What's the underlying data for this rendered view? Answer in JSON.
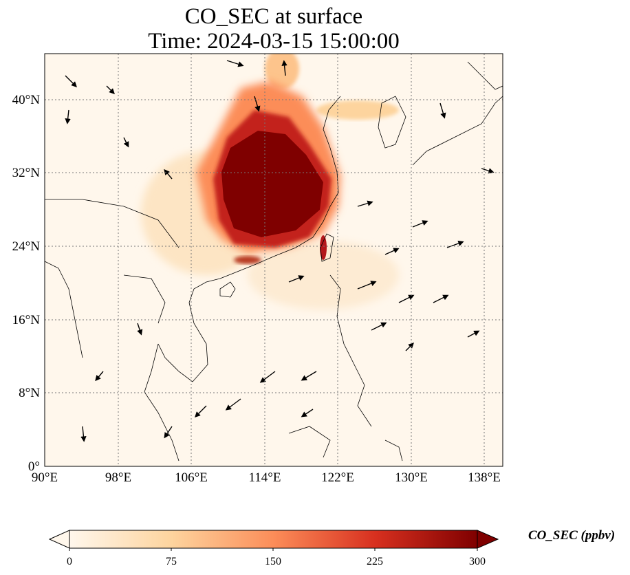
{
  "title": {
    "line1": "CO_SEC at surface",
    "line2": "Time: 2024-03-15 15:00:00"
  },
  "map": {
    "lon_range": [
      90,
      140
    ],
    "lat_range": [
      0,
      45
    ],
    "lon_ticks": [
      "90°E",
      "98°E",
      "106°E",
      "114°E",
      "122°E",
      "130°E",
      "138°E"
    ],
    "lat_ticks": [
      "0°",
      "8°N",
      "16°N",
      "24°N",
      "32°N",
      "40°N"
    ],
    "gridlines": "dotted",
    "features": [
      "coastlines",
      "country borders",
      "wind vectors"
    ],
    "high_concentration_region": "eastern China (approx. 106°E–122°E, 22°N–41°N)"
  },
  "colorbar": {
    "label": "CO_SEC (ppbv)",
    "ticks": [
      "0",
      "75",
      "150",
      "225",
      "300"
    ],
    "range": [
      0,
      300
    ],
    "extend": "both",
    "colormap": "OrRd",
    "colors": [
      "#fff7ec",
      "#fdd49e",
      "#fc8d59",
      "#d7301f",
      "#7f0000"
    ]
  }
}
